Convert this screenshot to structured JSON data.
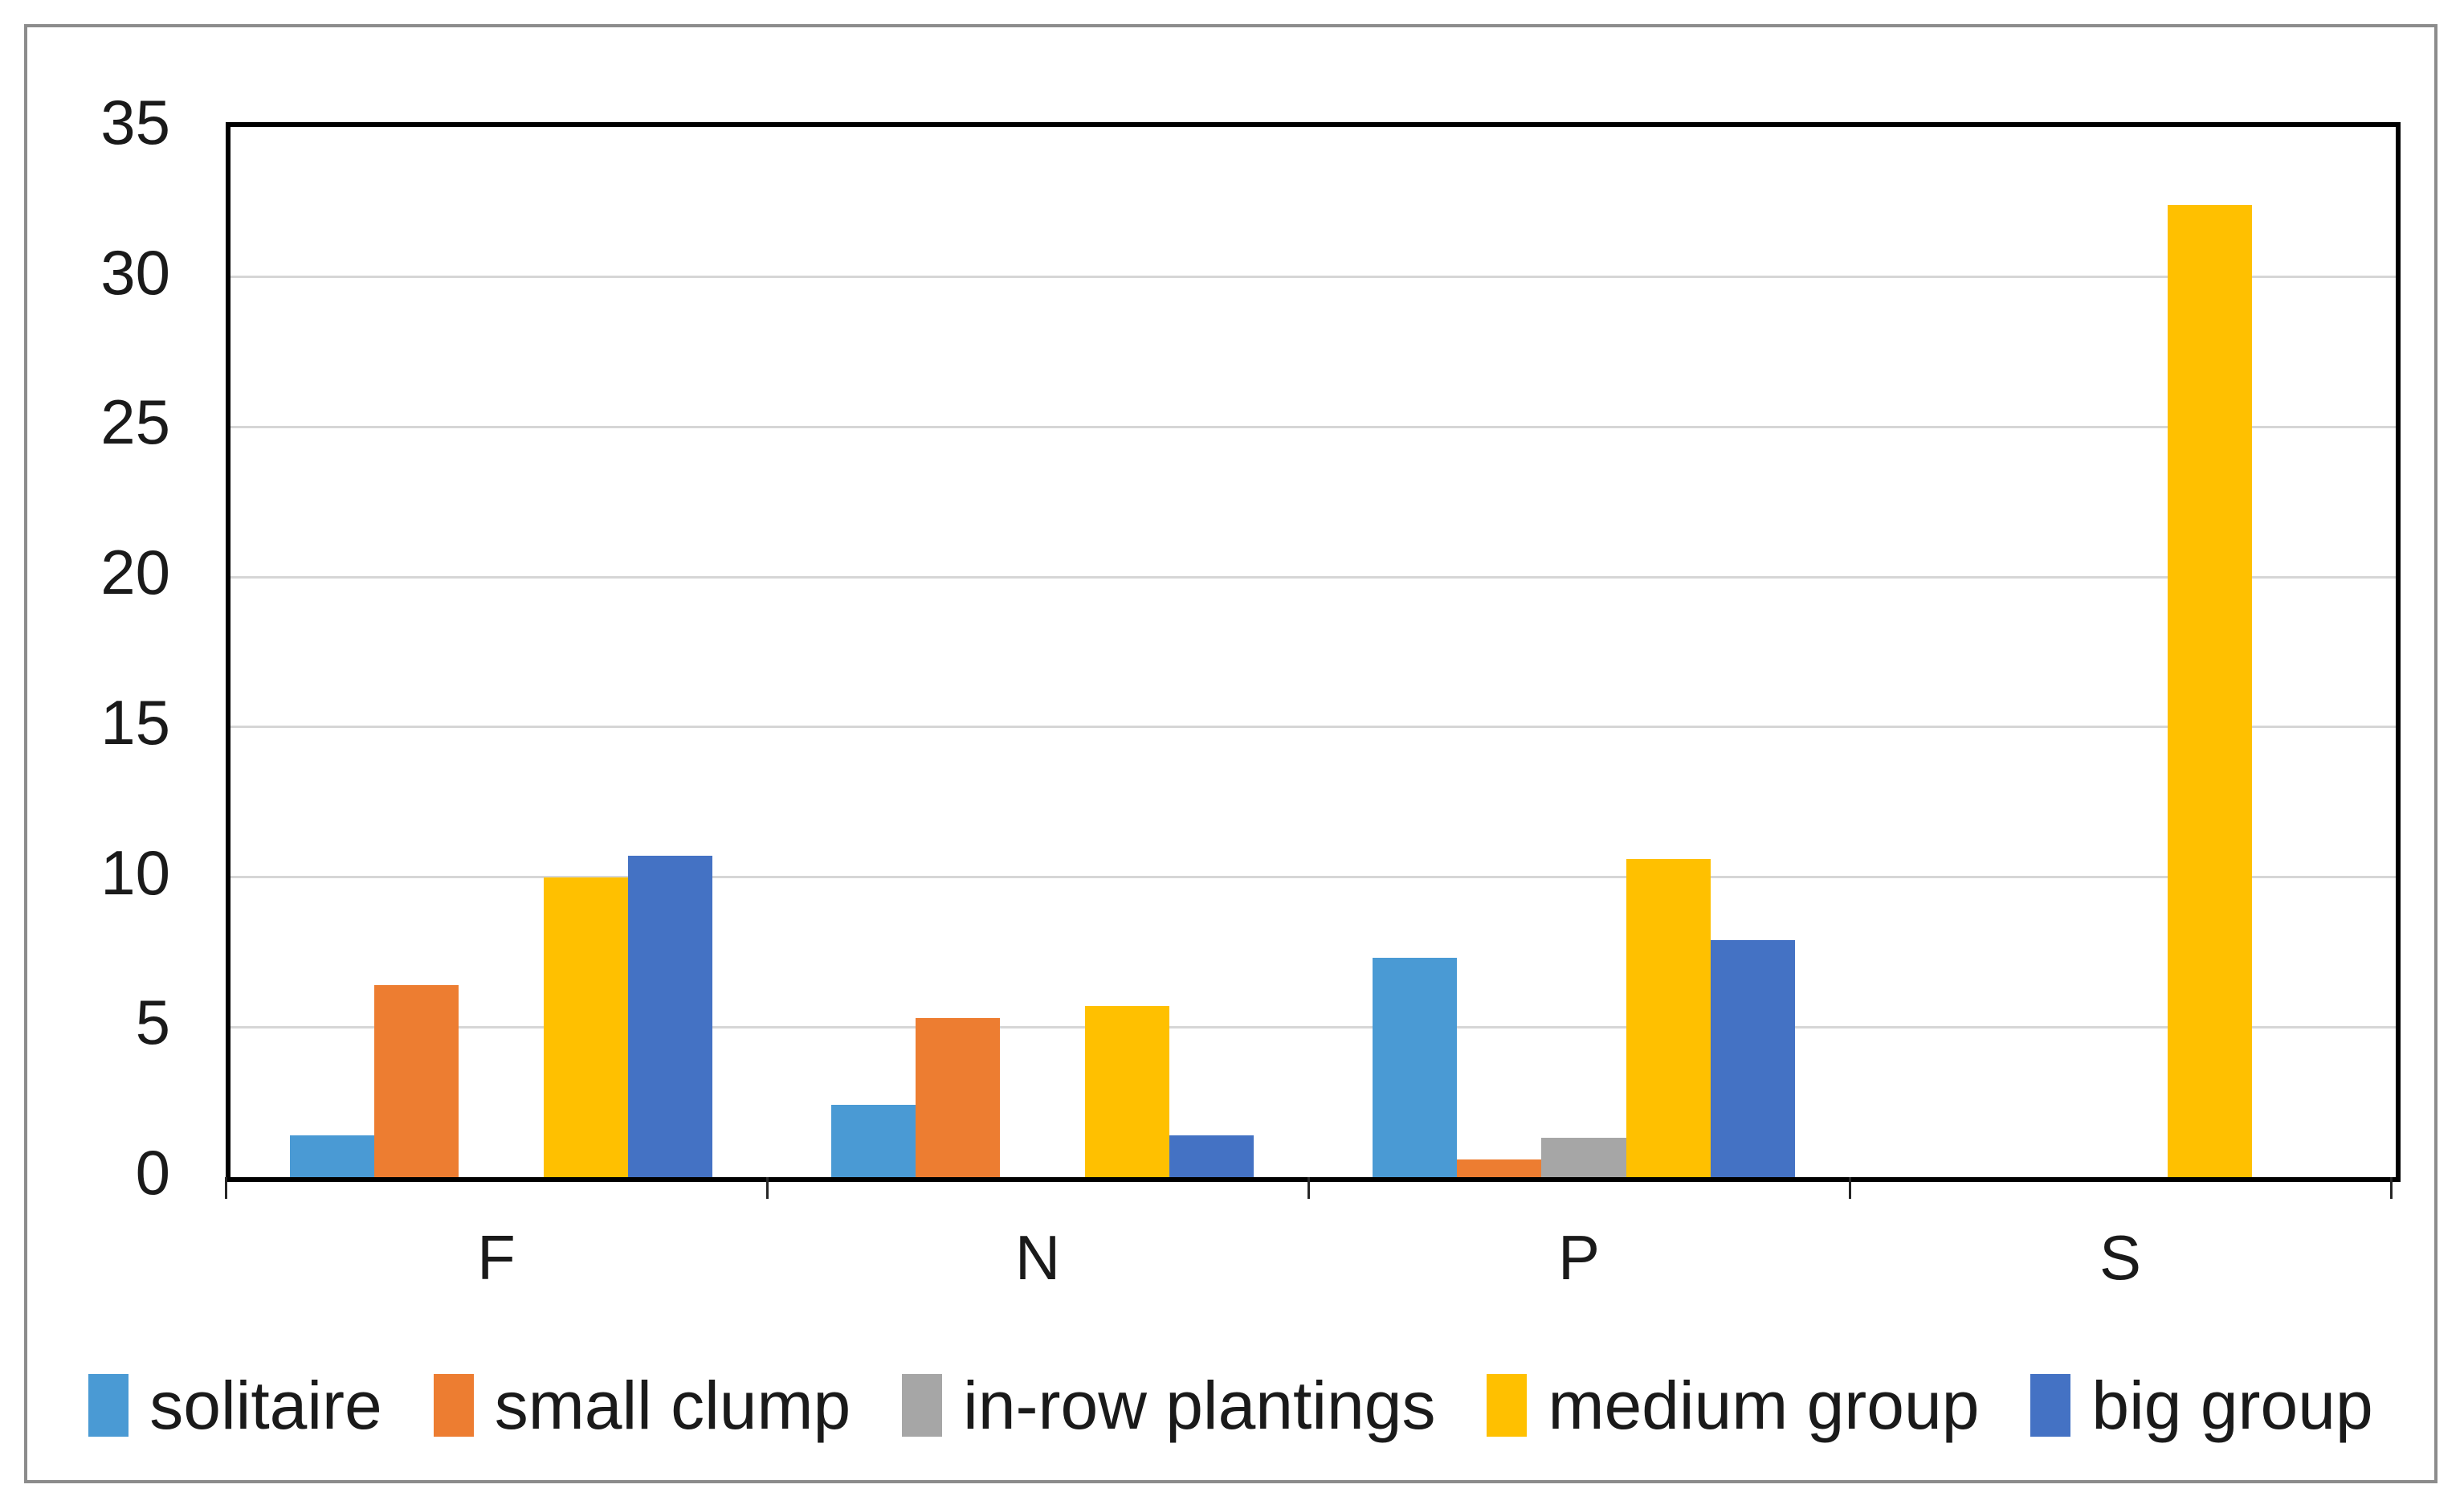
{
  "figure": {
    "background": "#ffffff",
    "border_color": "#8c8c8c"
  },
  "chart_data": {
    "type": "bar",
    "title": "",
    "xlabel": "",
    "ylabel": "",
    "categories": [
      "F",
      "N",
      "P",
      "S"
    ],
    "series": [
      {
        "name": "solitaire",
        "color": "#4a9ad4",
        "values": [
          1.4,
          2.4,
          7.3,
          0
        ]
      },
      {
        "name": "small clump",
        "color": "#ed7d31",
        "values": [
          6.4,
          5.3,
          0.6,
          0
        ]
      },
      {
        "name": "in-row plantings",
        "color": "#a6a6a6",
        "values": [
          0,
          0,
          1.3,
          0
        ]
      },
      {
        "name": "medium group",
        "color": "#ffc000",
        "values": [
          10.0,
          5.7,
          10.6,
          32.4
        ]
      },
      {
        "name": "big group",
        "color": "#4472c4",
        "values": [
          10.7,
          1.4,
          7.9,
          0
        ]
      }
    ],
    "ylim": [
      0,
      35
    ],
    "ytick_step": 5,
    "yticks": [
      "0",
      "5",
      "10",
      "15",
      "20",
      "25",
      "30",
      "35"
    ],
    "grid": true,
    "gridline_color": "#d6d6d6",
    "plot_border_color": "#000000",
    "legend_position": "bottom"
  }
}
